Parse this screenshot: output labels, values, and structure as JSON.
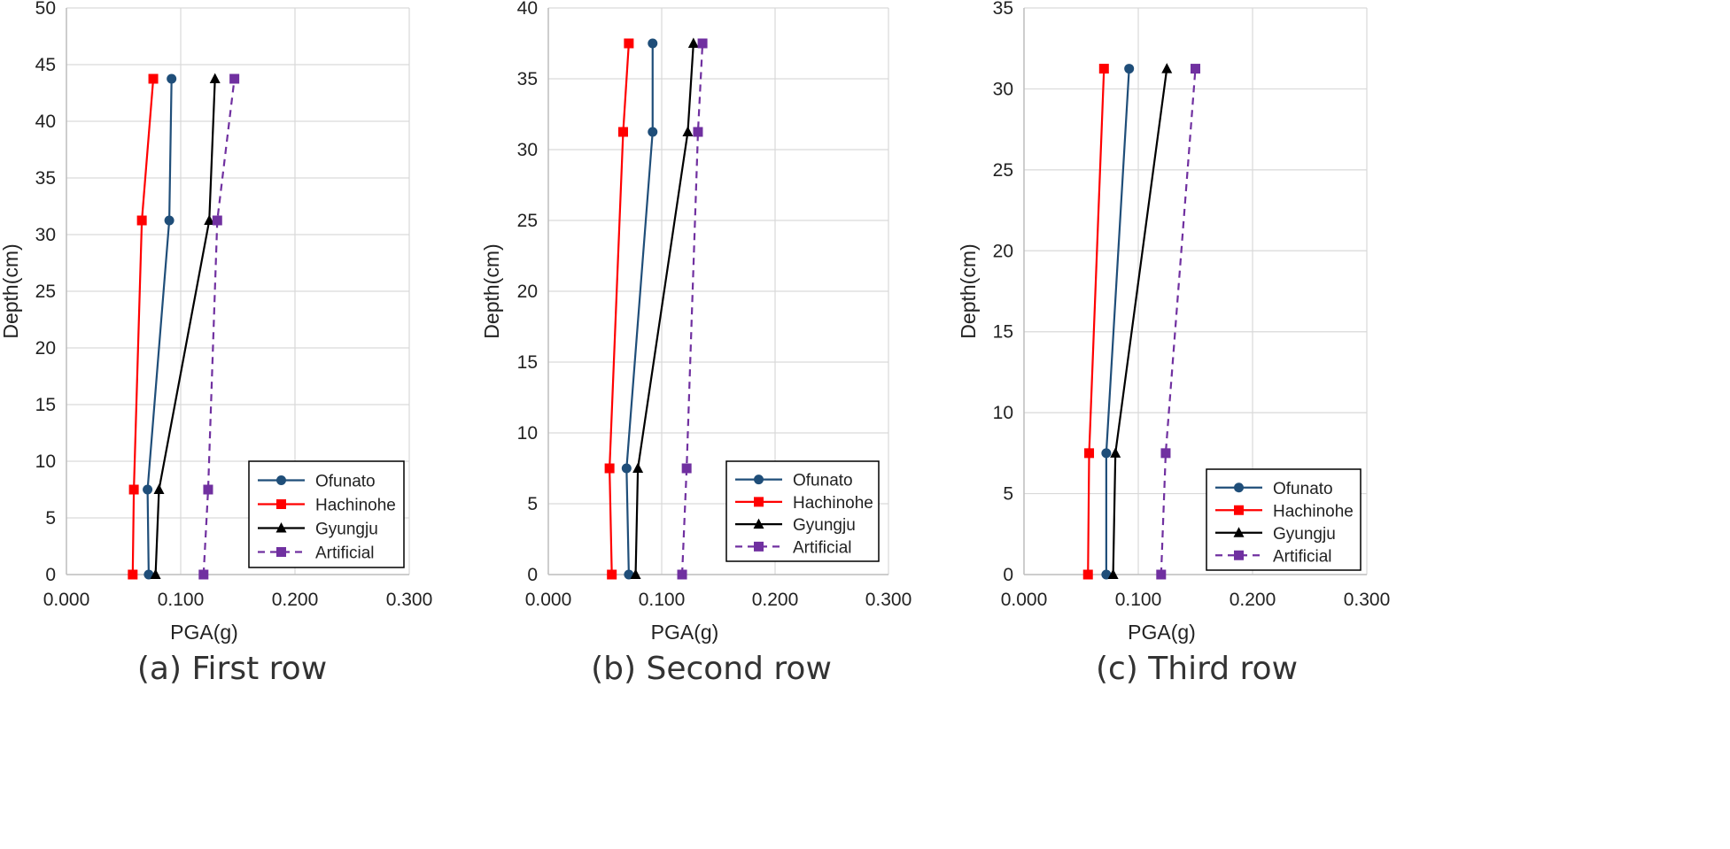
{
  "chart_data": [
    {
      "type": "line",
      "caption": "(a) First row",
      "xlabel": "PGA(g)",
      "ylabel": "Depth(cm)",
      "xlim": [
        0,
        0.3
      ],
      "ylim": [
        0,
        50
      ],
      "xticks": [
        "0.000",
        "0.100",
        "0.200",
        "0.300"
      ],
      "yticks": [
        "0",
        "5",
        "10",
        "15",
        "20",
        "25",
        "30",
        "35",
        "40",
        "45",
        "50"
      ],
      "grid": true,
      "legend_position": "bottom-right",
      "series": [
        {
          "name": "Ofunato",
          "color": "#1f4e79",
          "marker": "circle",
          "dash": "solid",
          "points": [
            [
              0.072,
              0
            ],
            [
              0.071,
              7.5
            ],
            [
              0.09,
              31.25
            ],
            [
              0.092,
              43.75
            ]
          ]
        },
        {
          "name": "Hachinohe",
          "color": "#ff0000",
          "marker": "square",
          "dash": "solid",
          "points": [
            [
              0.058,
              0
            ],
            [
              0.059,
              7.5
            ],
            [
              0.066,
              31.25
            ],
            [
              0.076,
              43.75
            ]
          ]
        },
        {
          "name": "Gyungju",
          "color": "#000000",
          "marker": "triangle",
          "dash": "solid",
          "points": [
            [
              0.078,
              0
            ],
            [
              0.081,
              7.5
            ],
            [
              0.125,
              31.25
            ],
            [
              0.13,
              43.75
            ]
          ]
        },
        {
          "name": "Artificial",
          "color": "#7030a0",
          "marker": "square",
          "dash": "dashed",
          "points": [
            [
              0.12,
              0
            ],
            [
              0.124,
              7.5
            ],
            [
              0.132,
              31.25
            ],
            [
              0.147,
              43.75
            ]
          ]
        }
      ]
    },
    {
      "type": "line",
      "caption": "(b) Second row",
      "xlabel": "PGA(g)",
      "ylabel": "Depth(cm)",
      "xlim": [
        0,
        0.3
      ],
      "ylim": [
        0,
        40
      ],
      "xticks": [
        "0.000",
        "0.100",
        "0.200",
        "0.300"
      ],
      "yticks": [
        "0",
        "5",
        "10",
        "15",
        "20",
        "25",
        "30",
        "35",
        "40"
      ],
      "grid": true,
      "legend_position": "bottom-right",
      "series": [
        {
          "name": "Ofunato",
          "color": "#1f4e79",
          "marker": "circle",
          "dash": "solid",
          "points": [
            [
              0.071,
              0
            ],
            [
              0.069,
              7.5
            ],
            [
              0.092,
              31.25
            ],
            [
              0.092,
              37.5
            ]
          ]
        },
        {
          "name": "Hachinohe",
          "color": "#ff0000",
          "marker": "square",
          "dash": "solid",
          "points": [
            [
              0.056,
              0
            ],
            [
              0.054,
              7.5
            ],
            [
              0.066,
              31.25
            ],
            [
              0.071,
              37.5
            ]
          ]
        },
        {
          "name": "Gyungju",
          "color": "#000000",
          "marker": "triangle",
          "dash": "solid",
          "points": [
            [
              0.077,
              0
            ],
            [
              0.079,
              7.5
            ],
            [
              0.123,
              31.25
            ],
            [
              0.128,
              37.5
            ]
          ]
        },
        {
          "name": "Artificial",
          "color": "#7030a0",
          "marker": "square",
          "dash": "dashed",
          "points": [
            [
              0.118,
              0
            ],
            [
              0.122,
              7.5
            ],
            [
              0.132,
              31.25
            ],
            [
              0.136,
              37.5
            ]
          ]
        }
      ]
    },
    {
      "type": "line",
      "caption": "(c) Third row",
      "xlabel": "PGA(g)",
      "ylabel": "Depth(cm)",
      "xlim": [
        0,
        0.3
      ],
      "ylim": [
        0,
        35
      ],
      "xticks": [
        "0.000",
        "0.100",
        "0.200",
        "0.300"
      ],
      "yticks": [
        "0",
        "5",
        "10",
        "15",
        "20",
        "25",
        "30",
        "35"
      ],
      "grid": true,
      "legend_position": "bottom-right",
      "series": [
        {
          "name": "Ofunato",
          "color": "#1f4e79",
          "marker": "circle",
          "dash": "solid",
          "points": [
            [
              0.072,
              0
            ],
            [
              0.072,
              7.5
            ],
            [
              0.092,
              31.25
            ]
          ]
        },
        {
          "name": "Hachinohe",
          "color": "#ff0000",
          "marker": "square",
          "dash": "solid",
          "points": [
            [
              0.056,
              0
            ],
            [
              0.057,
              7.5
            ],
            [
              0.07,
              31.25
            ]
          ]
        },
        {
          "name": "Gyungju",
          "color": "#000000",
          "marker": "triangle",
          "dash": "solid",
          "points": [
            [
              0.078,
              0
            ],
            [
              0.08,
              7.5
            ],
            [
              0.125,
              31.25
            ]
          ]
        },
        {
          "name": "Artificial",
          "color": "#7030a0",
          "marker": "square",
          "dash": "dashed",
          "points": [
            [
              0.12,
              0
            ],
            [
              0.124,
              7.5
            ],
            [
              0.15,
              31.25
            ]
          ]
        }
      ]
    }
  ]
}
